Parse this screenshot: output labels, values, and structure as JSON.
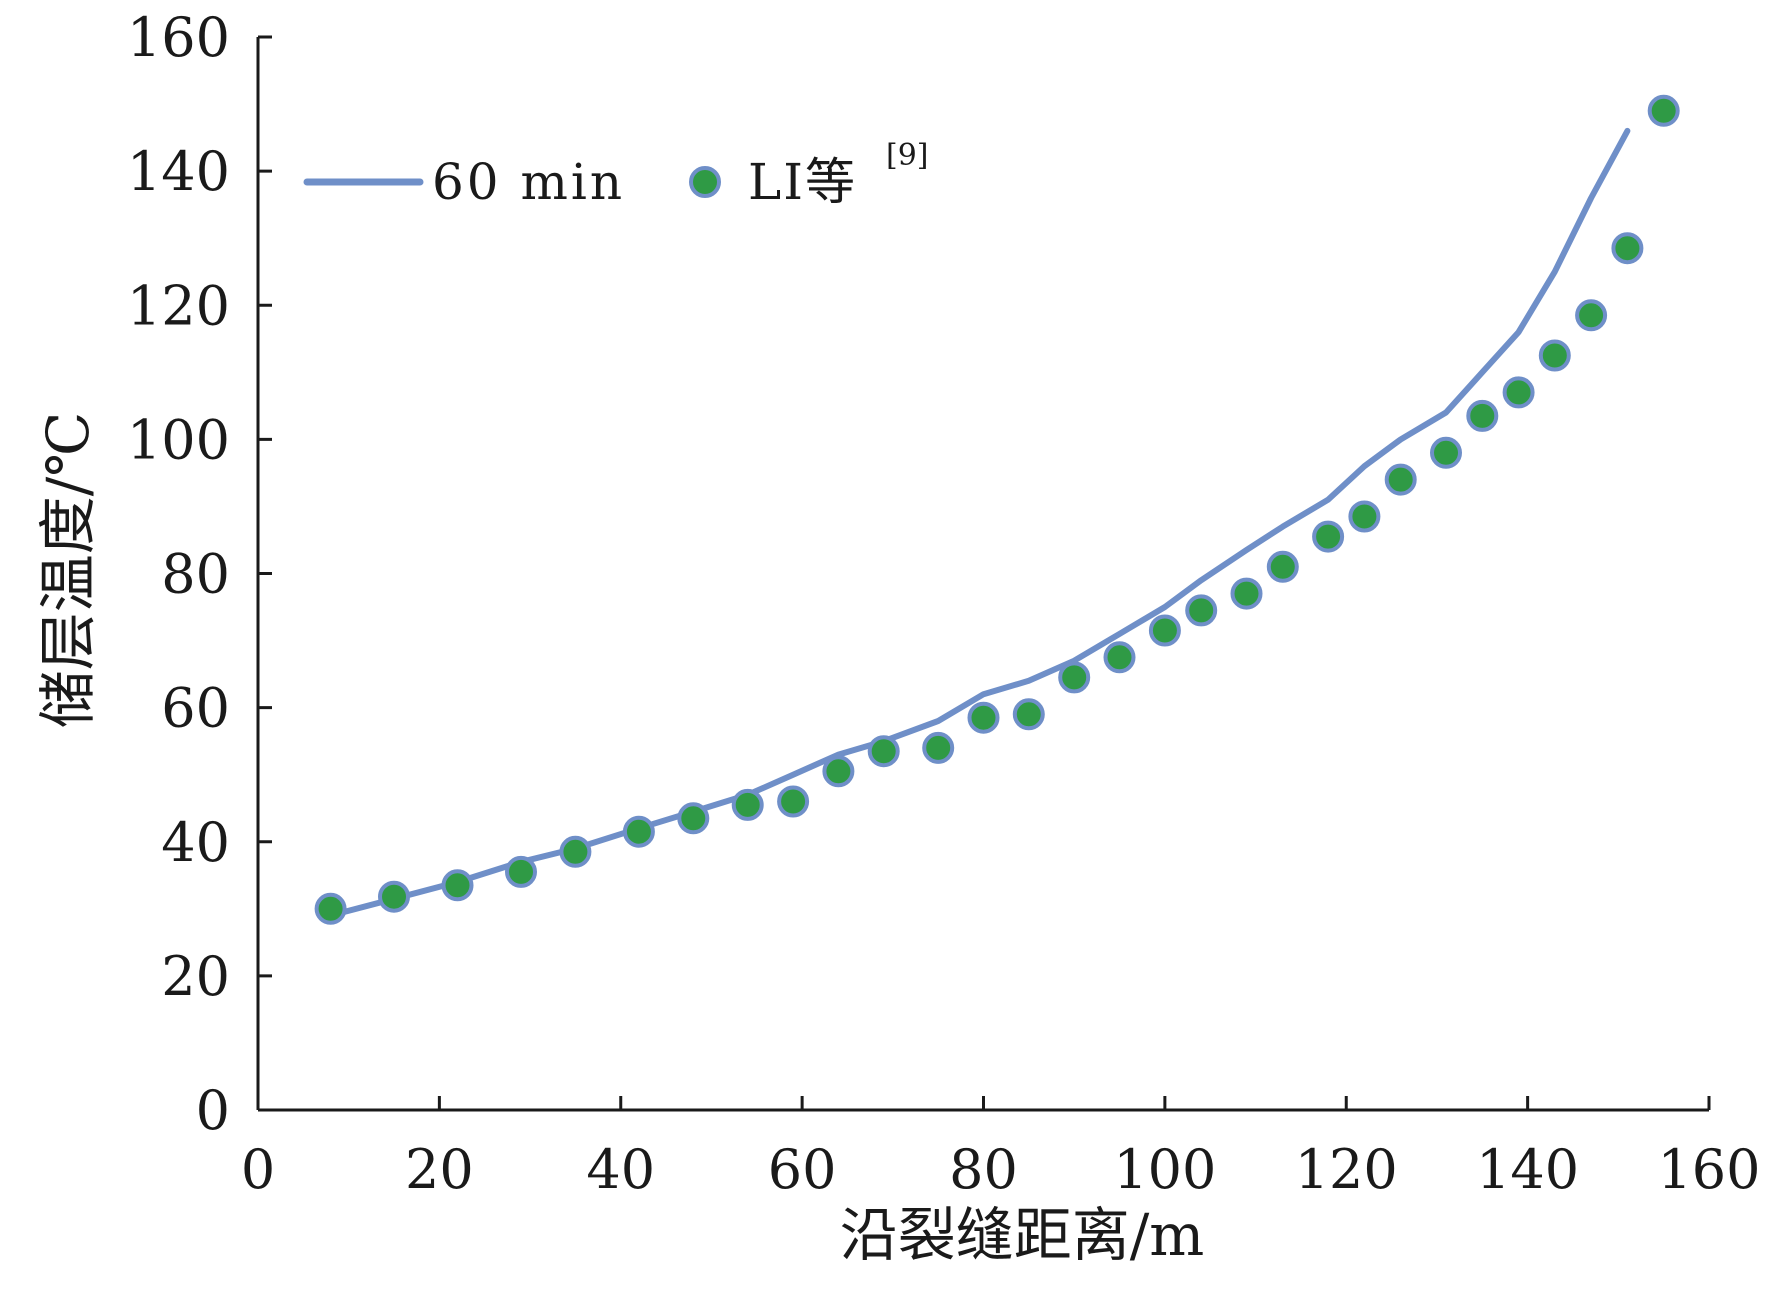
{
  "chart_data": {
    "type": "line+scatter",
    "xlabel": "沿裂缝距离/m",
    "ylabel": "储层温度/℃",
    "xlim": [
      0,
      160
    ],
    "ylim": [
      0,
      160
    ],
    "xticks": [
      "0",
      "20",
      "40",
      "60",
      "80",
      "100",
      "120",
      "140",
      "160"
    ],
    "yticks": [
      "0",
      "20",
      "40",
      "60",
      "80",
      "100",
      "120",
      "140",
      "160"
    ],
    "grid": false,
    "legend_position": "top-left",
    "series": [
      {
        "name": "60 min",
        "kind": "line",
        "color": "#6f8fc8",
        "x": [
          8,
          15,
          22,
          29,
          35,
          42,
          48,
          54,
          59,
          64,
          69,
          75,
          80,
          85,
          90,
          95,
          100,
          104,
          109,
          113,
          118,
          122,
          126,
          131,
          135,
          139,
          143,
          147,
          151
        ],
        "y": [
          29,
          31.5,
          34,
          37,
          39,
          42,
          44.5,
          47,
          50,
          53,
          55,
          58,
          62,
          64,
          67,
          71,
          75,
          79,
          83.5,
          87,
          91,
          96,
          100,
          104,
          110,
          116,
          125,
          136,
          146
        ]
      },
      {
        "name": "LI等",
        "name_superscript": "[9]",
        "kind": "scatter",
        "color": "#2f9a45",
        "edge_color": "#6f8fc8",
        "x": [
          8,
          15,
          22,
          29,
          35,
          42,
          48,
          54,
          59,
          64,
          69,
          75,
          80,
          85,
          90,
          95,
          100,
          104,
          109,
          113,
          118,
          122,
          126,
          131,
          135,
          139,
          143,
          147,
          151,
          155
        ],
        "y": [
          30,
          31.8,
          33.5,
          35.5,
          38.5,
          41.5,
          43.5,
          45.5,
          46,
          50.5,
          53.5,
          54,
          58.5,
          59,
          64.5,
          67.5,
          71.5,
          74.5,
          77,
          81,
          85.5,
          88.5,
          94,
          98,
          103.5,
          107,
          112.5,
          118.5,
          128.5,
          149
        ]
      }
    ]
  }
}
